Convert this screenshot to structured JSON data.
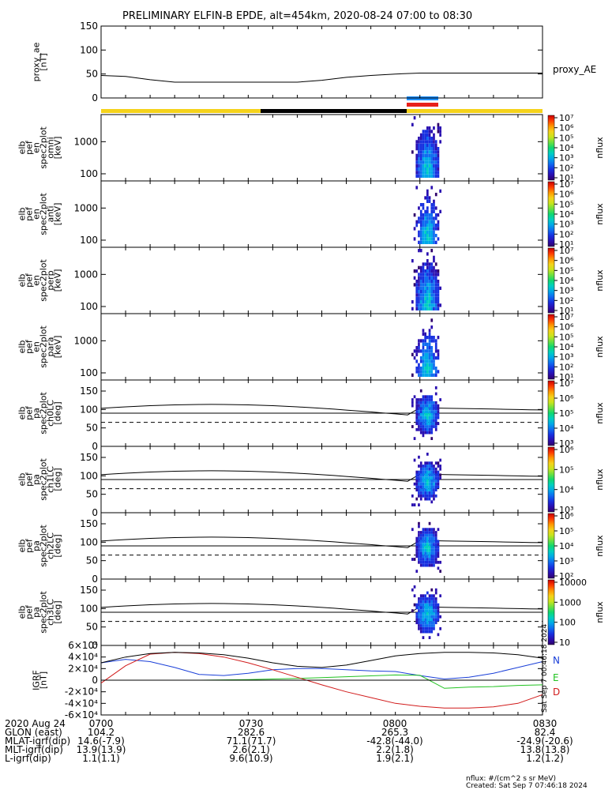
{
  "title": "PRELIMINARY ELFIN-B EPDE, alt=454km, 2020-08-24 07:00 to 08:30",
  "colors": {
    "bar_yellow": "#f5d21a",
    "bar_black": "#000000",
    "bar_blue": "#1e90ff",
    "bar_red": "#e8201a",
    "ae_line": "#000000",
    "n_comp": "#1a3fd8",
    "e_comp": "#22c322",
    "d_comp": "#d11a1a"
  },
  "colorbar_scale": [
    "#30006b",
    "#2a0fb0",
    "#1730e0",
    "#0f6cf0",
    "#00a8e8",
    "#00d0c0",
    "#10d870",
    "#6ce040",
    "#c8e41c",
    "#f5d21a",
    "#ff9600",
    "#ff3a00",
    "#c80000"
  ],
  "chart_data": [
    {
      "id": "proxy_ae",
      "type": "line",
      "ylabel": [
        "proxy_ae",
        "[nT]"
      ],
      "right_label": "proxy_AE",
      "ylim": [
        0,
        150
      ],
      "yticks": [
        "0",
        "50",
        "100",
        "150"
      ],
      "x": [
        "07:00",
        "07:05",
        "07:10",
        "07:15",
        "07:20",
        "07:25",
        "07:30",
        "07:35",
        "07:40",
        "07:45",
        "07:50",
        "07:55",
        "08:00",
        "08:05",
        "08:10",
        "08:15",
        "08:20",
        "08:25",
        "08:30"
      ],
      "series": [
        {
          "values": [
            47,
            45,
            38,
            33,
            33,
            33,
            33,
            33,
            33,
            37,
            43,
            47,
            50,
            52,
            52,
            52,
            52,
            52,
            52
          ]
        }
      ]
    },
    {
      "id": "omni",
      "type": "heatmap",
      "ylabel": [
        "elb",
        "pef",
        "en",
        "spec2plot",
        "omni",
        "[keV]"
      ],
      "yscale": "log",
      "yticks": [
        "100",
        "1000"
      ],
      "colorbar": {
        "label": "nflux",
        "ticks": [
          "10^1",
          "10^2",
          "10^3",
          "10^4",
          "10^5",
          "10^6",
          "10^7"
        ]
      }
    },
    {
      "id": "anti",
      "type": "heatmap",
      "ylabel": [
        "elb",
        "pef",
        "en",
        "spec2plot",
        "anti",
        "[keV]"
      ],
      "yscale": "log",
      "yticks": [
        "100",
        "1000"
      ],
      "colorbar": {
        "label": "nflux",
        "ticks": [
          "10^1",
          "10^2",
          "10^3",
          "10^4",
          "10^5",
          "10^6",
          "10^7"
        ]
      }
    },
    {
      "id": "perp",
      "type": "heatmap",
      "ylabel": [
        "elb",
        "pef",
        "en",
        "spec2plot",
        "perp",
        "[keV]"
      ],
      "yscale": "log",
      "yticks": [
        "100",
        "1000"
      ],
      "colorbar": {
        "label": "nflux",
        "ticks": [
          "10^1",
          "10^2",
          "10^3",
          "10^4",
          "10^5",
          "10^6",
          "10^7"
        ]
      }
    },
    {
      "id": "para",
      "type": "heatmap",
      "ylabel": [
        "elb",
        "pef",
        "en",
        "spec2plot",
        "para",
        "[keV]"
      ],
      "yscale": "log",
      "yticks": [
        "100",
        "1000"
      ],
      "colorbar": {
        "label": "nflux",
        "ticks": [
          "10^1",
          "10^2",
          "10^3",
          "10^4",
          "10^5",
          "10^6",
          "10^7"
        ]
      }
    },
    {
      "id": "ch0LC",
      "type": "heatmap",
      "ylabel": [
        "elb",
        "pef",
        "pa",
        "spec2plot",
        "ch0LC",
        "[deg]"
      ],
      "ylim": [
        0,
        180
      ],
      "yticks": [
        "0",
        "50",
        "100",
        "150"
      ],
      "colorbar": {
        "label": "nflux",
        "ticks": [
          "10^3",
          "10^4",
          "10^5",
          "10^6",
          "10^7"
        ]
      }
    },
    {
      "id": "ch1LC",
      "type": "heatmap",
      "ylabel": [
        "elb",
        "pef",
        "pa",
        "spec2plot",
        "ch1LC",
        "[deg]"
      ],
      "ylim": [
        0,
        180
      ],
      "yticks": [
        "0",
        "50",
        "100",
        "150"
      ],
      "colorbar": {
        "label": "nflux",
        "ticks": [
          "10^3",
          "10^4",
          "10^5",
          "10^6"
        ]
      }
    },
    {
      "id": "ch2LC",
      "type": "heatmap",
      "ylabel": [
        "elb",
        "pef",
        "pa",
        "spec2plot",
        "ch2LC",
        "[deg]"
      ],
      "ylim": [
        0,
        180
      ],
      "yticks": [
        "0",
        "50",
        "100",
        "150"
      ],
      "colorbar": {
        "label": "nflux",
        "ticks": [
          "10^2",
          "10^3",
          "10^4",
          "10^5",
          "10^6"
        ]
      }
    },
    {
      "id": "ch3LC",
      "type": "heatmap",
      "ylabel": [
        "elb",
        "pef",
        "pa",
        "spec2plot",
        "ch3LC",
        "[deg]"
      ],
      "ylim": [
        0,
        180
      ],
      "yticks": [
        "0",
        "50",
        "100",
        "150"
      ],
      "colorbar": {
        "label": "nflux",
        "ticks": [
          "10",
          "100",
          "1000",
          "10000"
        ]
      }
    },
    {
      "id": "igrf",
      "type": "line",
      "ylabel": [
        "IGRF",
        "[nT]"
      ],
      "ylim": [
        -60000,
        60000
      ],
      "yticks": [
        "-6×10⁴",
        "-4×10⁴",
        "-2×10⁴",
        "0",
        "2×10⁴",
        "4×10⁴",
        "6×10⁴"
      ],
      "x": [
        "07:00",
        "07:05",
        "07:10",
        "07:15",
        "07:20",
        "07:25",
        "07:30",
        "07:35",
        "07:40",
        "07:45",
        "07:50",
        "07:55",
        "08:00",
        "08:05",
        "08:10",
        "08:15",
        "08:20",
        "08:25",
        "08:30"
      ],
      "series": [
        {
          "name": "N",
          "values": [
            30000,
            36000,
            32000,
            22000,
            10000,
            8000,
            12000,
            18000,
            20000,
            20000,
            18000,
            16000,
            15000,
            8000,
            2000,
            5000,
            12000,
            22000,
            32000
          ]
        },
        {
          "name": "E",
          "values": [
            null,
            null,
            null,
            0,
            0,
            500,
            1000,
            2000,
            3000,
            4500,
            6000,
            7500,
            9000,
            8500,
            -14000,
            -12000,
            -11000,
            -9000,
            -8000
          ]
        },
        {
          "name": "D",
          "values": [
            -5000,
            25000,
            45000,
            48000,
            46000,
            40000,
            30000,
            18000,
            5000,
            -8000,
            -20000,
            -30000,
            -40000,
            -45000,
            -48000,
            -48000,
            -46000,
            -40000,
            -25000
          ]
        },
        {
          "values": [
            30000,
            40000,
            46000,
            48000,
            47000,
            44000,
            38000,
            30000,
            24000,
            22000,
            26000,
            34000,
            42000,
            46000,
            48000,
            48000,
            47000,
            44000,
            38000
          ]
        }
      ]
    }
  ],
  "time_axis": {
    "row_labels": [
      "2020 Aug 24",
      "GLON (east)",
      "MLAT-igrf(dip)",
      "MLT-igrf(dip)",
      "L-igrf(dip)"
    ],
    "columns": [
      {
        "time": "0700",
        "values": [
          "104.2",
          "14.6(-7.9)",
          "13.9(13.9)",
          "1.1(1.1)"
        ]
      },
      {
        "time": "0730",
        "values": [
          "282.6",
          "71.1(71.7)",
          "2.6(2.1)",
          "9.6(10.9)"
        ]
      },
      {
        "time": "0800",
        "values": [
          "265.3",
          "-42.8(-44.0)",
          "2.2(1.8)",
          "1.9(2.1)"
        ]
      },
      {
        "time": "0830",
        "values": [
          "82.4",
          "-24.9(-20.6)",
          "13.8(13.8)",
          "1.2(1.2)"
        ]
      }
    ]
  },
  "footer": {
    "units": "nflux: #/(cm^2 s sr MeV)",
    "created": "Created: Sat Sep  7 07:46:18 2024",
    "side_stamp": "Sat Sep  7 00:46:18 2024"
  }
}
